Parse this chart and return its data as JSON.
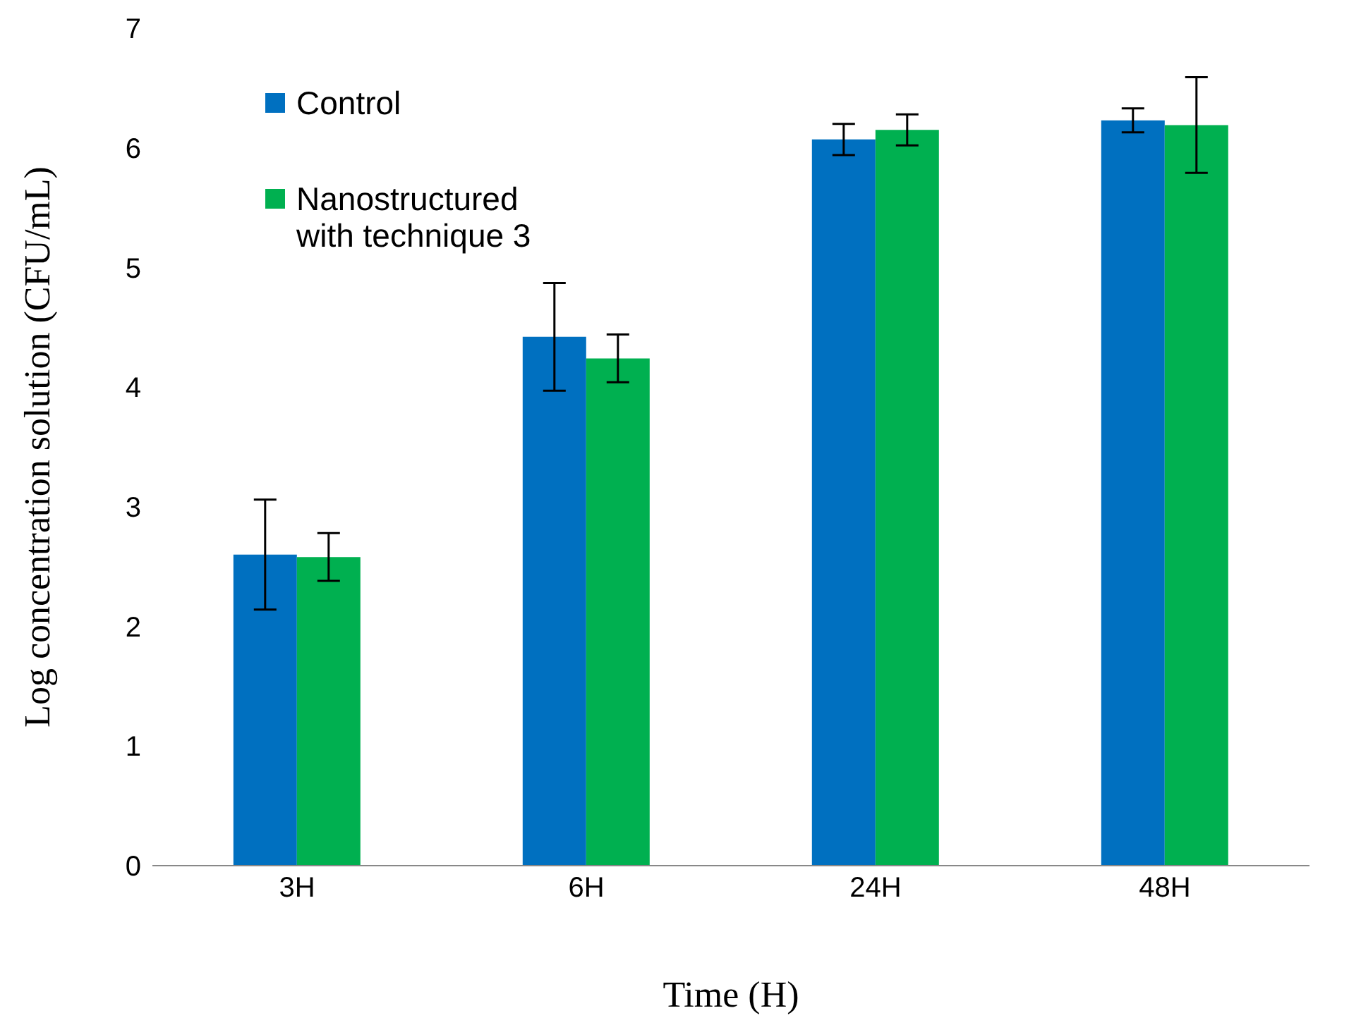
{
  "chart_data": {
    "type": "bar",
    "xlabel": "Time (H)",
    "ylabel": "Log concentration solution (CFU/mL)",
    "categories": [
      "3H",
      "6H",
      "24H",
      "48H"
    ],
    "series": [
      {
        "name": "Control",
        "color": "#0070c0",
        "values": [
          2.6,
          4.42,
          6.07,
          6.23
        ],
        "errors": [
          0.46,
          0.45,
          0.13,
          0.1
        ]
      },
      {
        "name": "Nanostructured with technique 3",
        "color": "#00b050",
        "values": [
          2.58,
          4.24,
          6.15,
          6.19
        ],
        "errors": [
          0.2,
          0.2,
          0.13,
          0.4
        ]
      }
    ],
    "ylim": [
      0,
      7
    ],
    "yticks": [
      0,
      1,
      2,
      3,
      4,
      5,
      6,
      7
    ],
    "grid": false,
    "legend": "top left"
  }
}
